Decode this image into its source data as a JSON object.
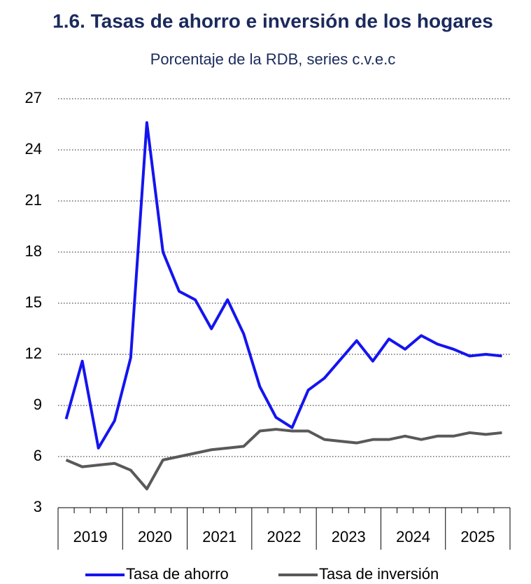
{
  "chart_data": {
    "type": "line",
    "title": "1.6. Tasas de ahorro e inversión de los hogares",
    "subtitle": "Porcentaje de la RDB, series c.v.e.c",
    "categories": [
      "2019",
      null,
      null,
      null,
      "2020",
      null,
      null,
      null,
      "2021",
      null,
      null,
      null,
      "2022",
      null,
      null,
      null,
      "2023",
      null,
      null,
      null,
      "2024",
      null,
      null,
      null,
      "2025",
      null,
      null,
      null
    ],
    "series": [
      {
        "name": "Tasa de ahorro",
        "color": "#1414f0",
        "values": [
          8.2,
          11.6,
          6.5,
          8.1,
          11.8,
          25.6,
          18.0,
          15.7,
          15.2,
          13.5,
          15.2,
          13.2,
          10.1,
          8.3,
          7.7,
          9.9,
          10.6,
          11.7,
          12.8,
          11.6,
          12.9,
          12.3,
          13.1,
          12.6,
          12.3,
          11.9,
          12.0,
          11.9
        ]
      },
      {
        "name": "Tasa de inversión",
        "color": "#595959",
        "values": [
          5.8,
          5.4,
          5.5,
          5.6,
          5.2,
          4.1,
          5.8,
          6.0,
          6.2,
          6.4,
          6.5,
          6.6,
          7.5,
          7.6,
          7.5,
          7.5,
          7.0,
          6.9,
          6.8,
          7.0,
          7.0,
          7.2,
          7.0,
          7.2,
          7.2,
          7.4,
          7.3,
          7.4
        ]
      }
    ],
    "ylim": [
      3,
      27
    ],
    "yticks": [
      3,
      6,
      9,
      12,
      15,
      18,
      21,
      24,
      27
    ],
    "grid": true,
    "legend": "bottom"
  }
}
